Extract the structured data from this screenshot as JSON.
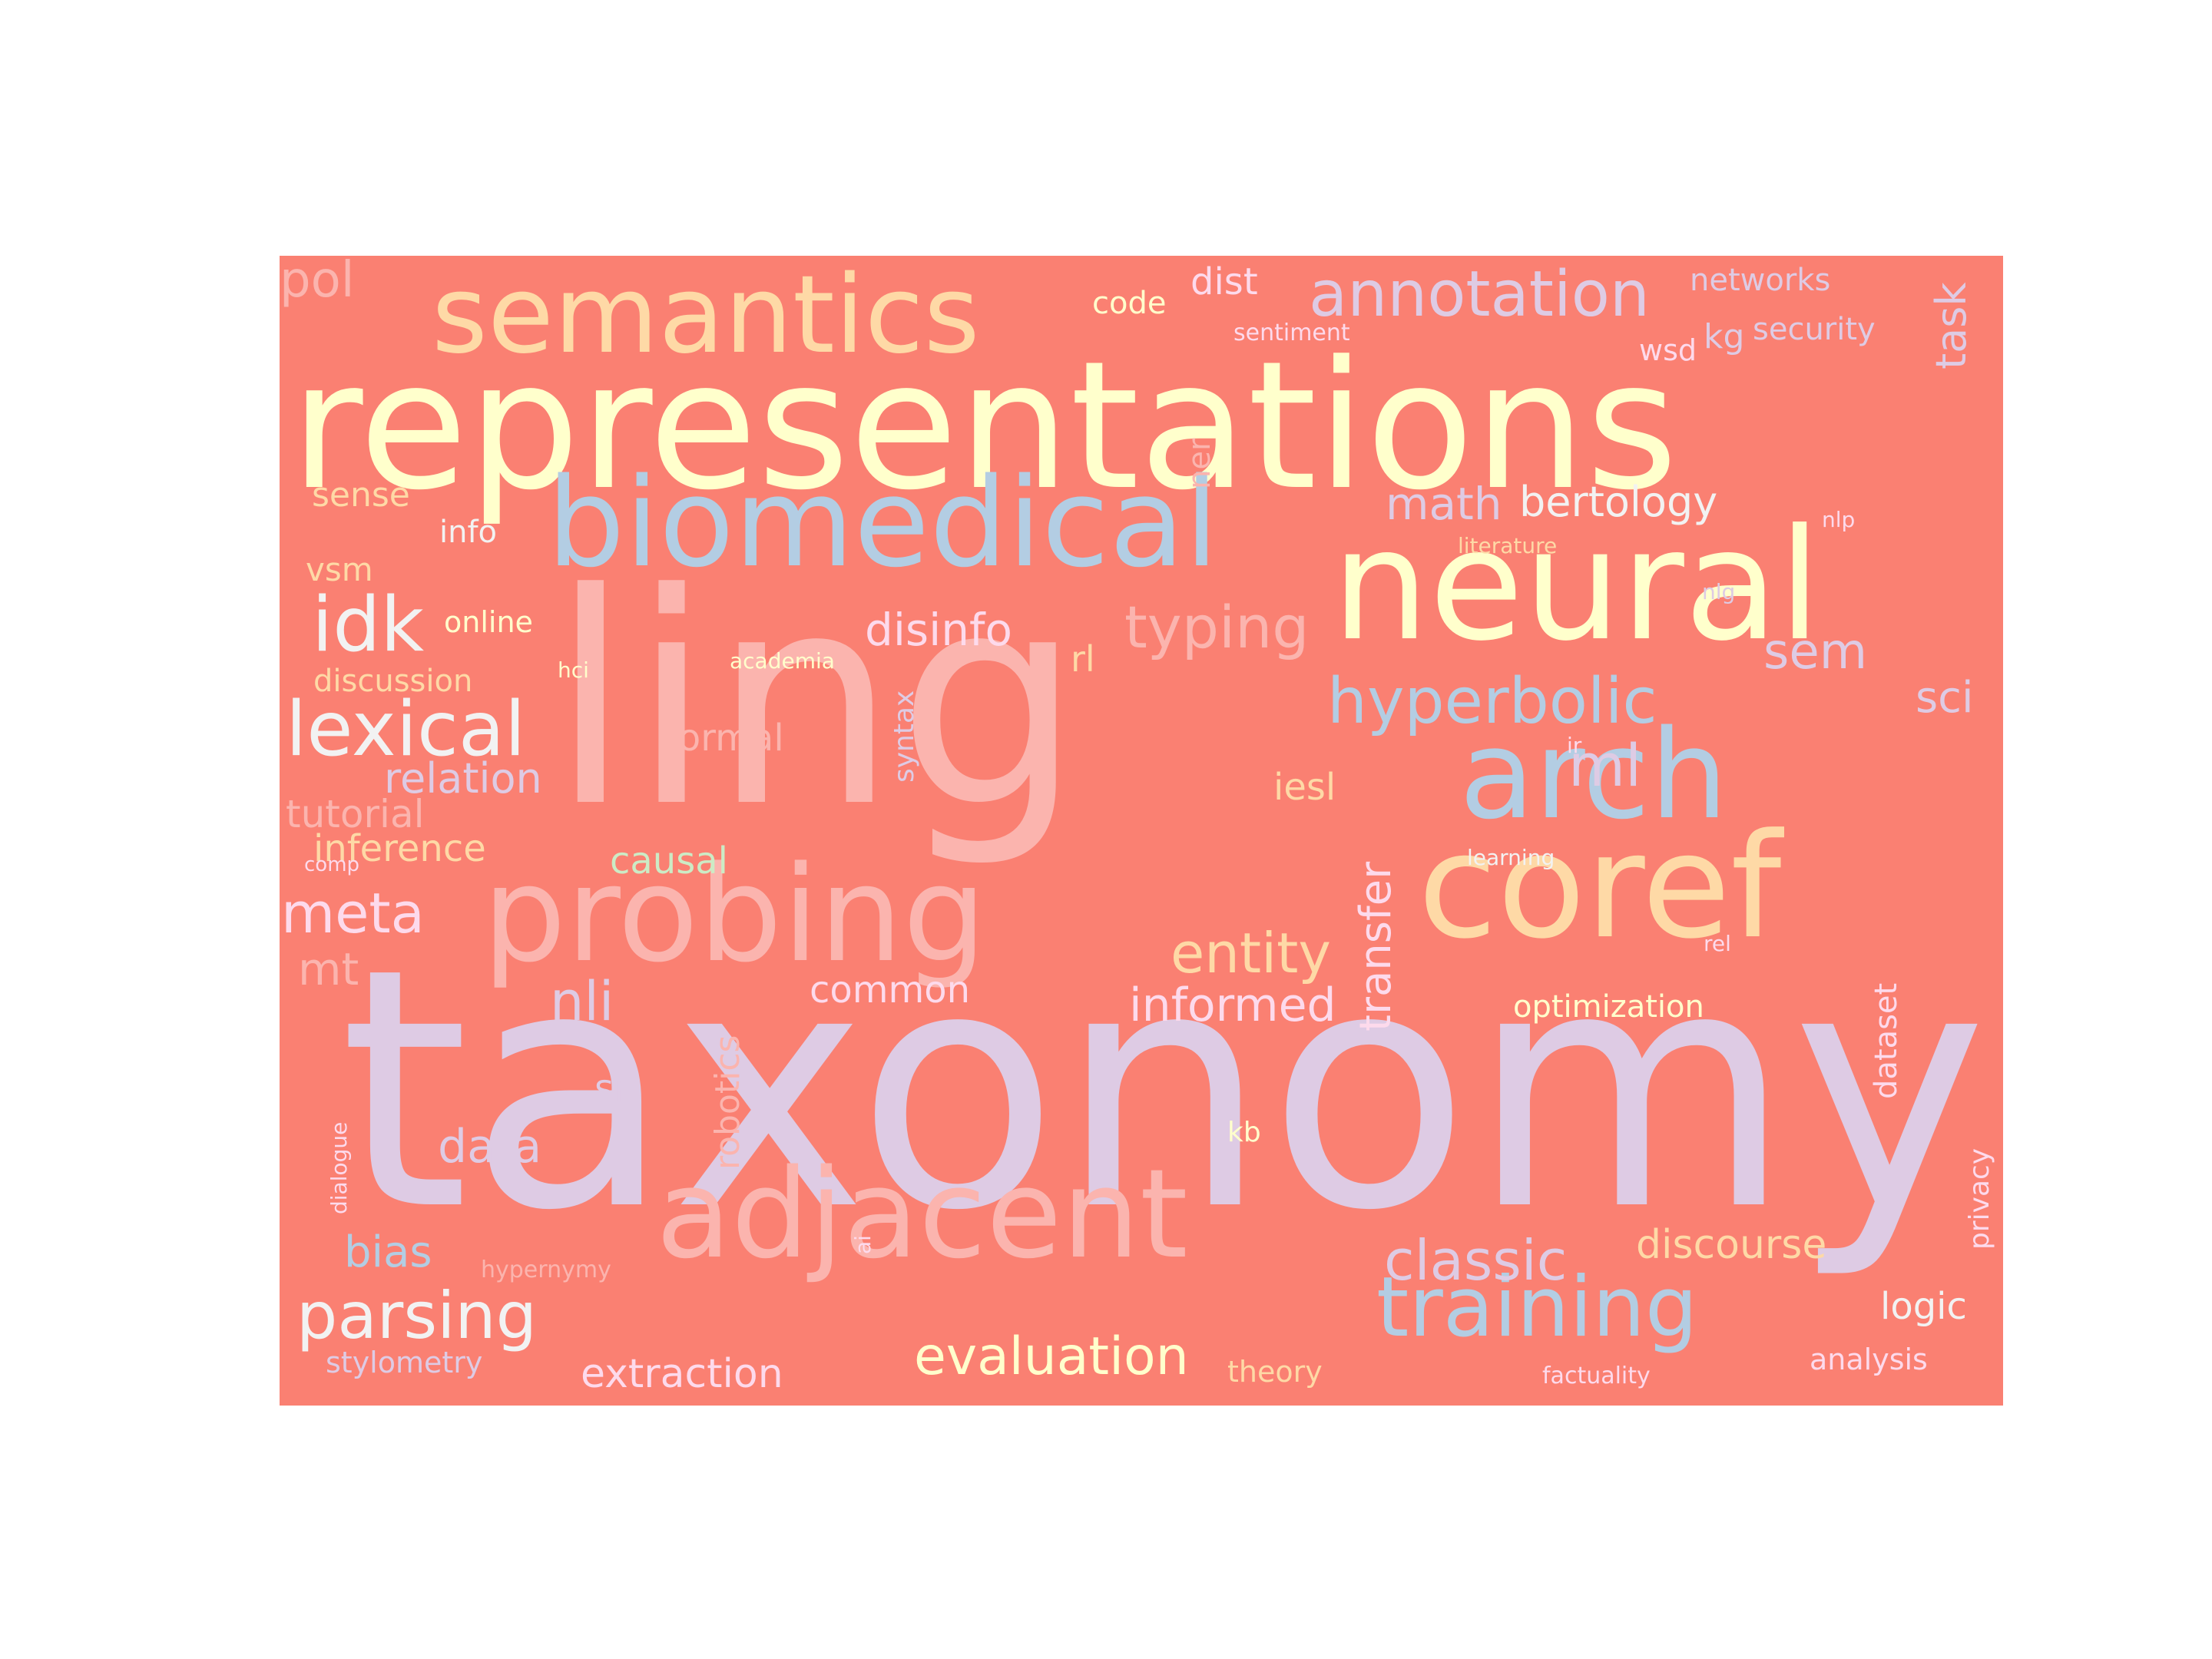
{
  "word_cloud": {
    "background_color": "#fa8072",
    "words": [
      {
        "text": "taxonomy",
        "color": "#decbe4"
      },
      {
        "text": "ling",
        "color": "#fbb4ae"
      },
      {
        "text": "representations",
        "color": "#ffffcc"
      },
      {
        "text": "neural",
        "color": "#ffffcc"
      },
      {
        "text": "biomedical",
        "color": "#b3cde3"
      },
      {
        "text": "coref",
        "color": "#fed9a6"
      },
      {
        "text": "probing",
        "color": "#fbb4ae"
      },
      {
        "text": "semantics",
        "color": "#fed9a6"
      },
      {
        "text": "arch",
        "color": "#b3cde3"
      },
      {
        "text": "adjacent",
        "color": "#fbb4ae"
      },
      {
        "text": "training",
        "color": "#b3cde3"
      },
      {
        "text": "annotation",
        "color": "#decbe4"
      },
      {
        "text": "lexical",
        "color": "#f2f2f2"
      },
      {
        "text": "idk",
        "color": "#f2f2f2"
      },
      {
        "text": "hyperbolic",
        "color": "#b3cde3"
      },
      {
        "text": "typing",
        "color": "#fbb4ae"
      },
      {
        "text": "entity",
        "color": "#fed9a6"
      },
      {
        "text": "classic",
        "color": "#decbe4"
      },
      {
        "text": "parsing",
        "color": "#f2f2f2"
      },
      {
        "text": "evaluation",
        "color": "#ffffcc"
      },
      {
        "text": "meta",
        "color": "#fddaec"
      },
      {
        "text": "ml",
        "color": "#decbe4"
      },
      {
        "text": "sem",
        "color": "#decbe4"
      },
      {
        "text": "informed",
        "color": "#fddaec"
      },
      {
        "text": "nli",
        "color": "#decbe4"
      },
      {
        "text": "bertology",
        "color": "#f2f2f2"
      },
      {
        "text": "disinfo",
        "color": "#fddaec"
      },
      {
        "text": "math",
        "color": "#decbe4"
      },
      {
        "text": "relation",
        "color": "#decbe4"
      },
      {
        "text": "data",
        "color": "#decbe4"
      },
      {
        "text": "bias",
        "color": "#b3cde3"
      },
      {
        "text": "extraction",
        "color": "#fddaec"
      },
      {
        "text": "transfer",
        "color": "#fddaec"
      },
      {
        "text": "discourse",
        "color": "#fed9a6"
      },
      {
        "text": "sci",
        "color": "#decbe4"
      },
      {
        "text": "mt",
        "color": "#fbb4ae"
      },
      {
        "text": "pol",
        "color": "#fbb4ae"
      },
      {
        "text": "task",
        "color": "#decbe4"
      },
      {
        "text": "dist",
        "color": "#fddaec"
      },
      {
        "text": "inference",
        "color": "#fed9a6"
      },
      {
        "text": "srl",
        "color": "#decbe4"
      },
      {
        "text": "tutorial",
        "color": "#fbb4ae"
      },
      {
        "text": "formal",
        "color": "#fbb4ae"
      },
      {
        "text": "common",
        "color": "#fddaec"
      },
      {
        "text": "causal",
        "color": "#ccebc5"
      },
      {
        "text": "iesl",
        "color": "#fed9a6"
      },
      {
        "text": "logic",
        "color": "#f2f2f2"
      },
      {
        "text": "robotics",
        "color": "#fbb4ae"
      },
      {
        "text": "optimization",
        "color": "#ffffcc"
      },
      {
        "text": "dataset",
        "color": "#fddaec"
      },
      {
        "text": "sense",
        "color": "#fed9a6"
      },
      {
        "text": "online",
        "color": "#ffffcc"
      },
      {
        "text": "vsm",
        "color": "#fed9a6"
      },
      {
        "text": "discussion",
        "color": "#fed9a6"
      },
      {
        "text": "info",
        "color": "#f2f2f2"
      },
      {
        "text": "rl",
        "color": "#fed9a6"
      },
      {
        "text": "kg",
        "color": "#decbe4"
      },
      {
        "text": "security",
        "color": "#decbe4"
      },
      {
        "text": "networks",
        "color": "#decbe4"
      },
      {
        "text": "code",
        "color": "#ffffcc"
      },
      {
        "text": "wsd",
        "color": "#fddaec"
      },
      {
        "text": "ner",
        "color": "#fbb4ae"
      },
      {
        "text": "syntax",
        "color": "#decbe4"
      },
      {
        "text": "stylometry",
        "color": "#decbe4"
      },
      {
        "text": "analysis",
        "color": "#fddaec"
      },
      {
        "text": "theory",
        "color": "#fed9a6"
      },
      {
        "text": "privacy",
        "color": "#fddaec"
      },
      {
        "text": "kb",
        "color": "#ffffcc"
      },
      {
        "text": "sentiment",
        "color": "#fddaec"
      },
      {
        "text": "literature",
        "color": "#fed9a6"
      },
      {
        "text": "nlp",
        "color": "#fddaec"
      },
      {
        "text": "nlg",
        "color": "#decbe4"
      },
      {
        "text": "hci",
        "color": "#ffffcc"
      },
      {
        "text": "academia",
        "color": "#ffffcc"
      },
      {
        "text": "ir",
        "color": "#fddaec"
      },
      {
        "text": "learning",
        "color": "#f2f2f2"
      },
      {
        "text": "rel",
        "color": "#fddaec"
      },
      {
        "text": "comp",
        "color": "#fddaec"
      },
      {
        "text": "dialogue",
        "color": "#fddaec"
      },
      {
        "text": "ai",
        "color": "#fddaec"
      },
      {
        "text": "hypernymy",
        "color": "#fbb4ae"
      },
      {
        "text": "factuality",
        "color": "#fddaec"
      }
    ]
  }
}
